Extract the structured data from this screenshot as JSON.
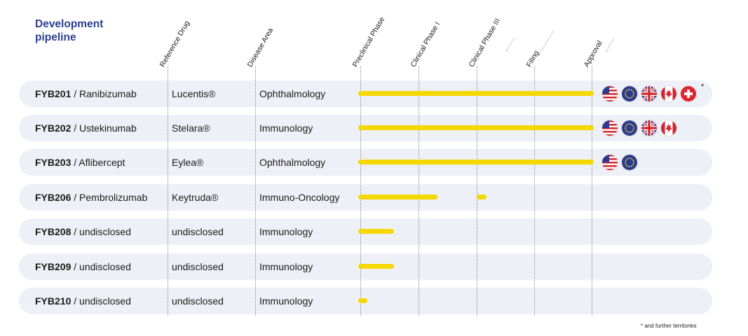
{
  "title": {
    "line1": "Development",
    "line2": "pipeline"
  },
  "columns": {
    "reference_drug": "Reference Drug",
    "disease_area": "Disease Area",
    "preclinical": "Preclinical Phase",
    "clinical1": "Clinical Phase I",
    "clinical3": "Clinical Phase III",
    "filing": "Filing",
    "approval": "Approval"
  },
  "chart_data": {
    "type": "table",
    "title": "Development pipeline",
    "phases": [
      "Preclinical Phase",
      "Clinical Phase I",
      "Clinical Phase III",
      "Filing",
      "Approval"
    ],
    "rows": [
      {
        "code": "FYB201",
        "molecule": "/ Ranibizumab",
        "reference": "Lucentis®",
        "area": "Ophthalmology",
        "progress_end": 4.0,
        "extra_marker": null,
        "flags": [
          "us-flag-icon",
          "eu-flag-icon",
          "uk-flag-icon",
          "ca-flag-icon",
          "ch-flag-icon"
        ],
        "asterisk": "*"
      },
      {
        "code": "FYB202",
        "molecule": "/ Ustekinumab",
        "reference": "Stelara®",
        "area": "Immunology",
        "progress_end": 4.0,
        "extra_marker": null,
        "flags": [
          "us-flag-icon",
          "eu-flag-icon",
          "uk-flag-icon",
          "ca-flag-icon"
        ]
      },
      {
        "code": "FYB203",
        "molecule": "/ Aflibercept",
        "reference": "Eylea®",
        "area": "Ophthalmology",
        "progress_end": 4.0,
        "extra_marker": null,
        "flags": [
          "us-flag-icon",
          "eu-flag-icon"
        ]
      },
      {
        "code": "FYB206",
        "molecule": "/ Pembrolizumab",
        "reference": "Keytruda®",
        "area": "Immuno-Oncology",
        "progress_end": 1.3,
        "extra_marker": {
          "start": 2.05,
          "end": 2.15
        },
        "flags": []
      },
      {
        "code": "FYB208",
        "molecule": "/ undisclosed",
        "reference": "undisclosed",
        "area": "Immunology",
        "progress_end": 0.55,
        "extra_marker": null,
        "flags": []
      },
      {
        "code": "FYB209",
        "molecule": "/ undisclosed",
        "reference": "undisclosed",
        "area": "Immunology",
        "progress_end": 0.55,
        "extra_marker": null,
        "flags": []
      },
      {
        "code": "FYB210",
        "molecule": "/ undisclosed",
        "reference": "undisclosed",
        "area": "Immunology",
        "progress_end": 0.08,
        "extra_marker": null,
        "flags": []
      }
    ]
  },
  "footnote": "* and further territories",
  "colors": {
    "bar": "#f5d800",
    "row": "#eef0f7",
    "title": "#2d3f8f"
  }
}
